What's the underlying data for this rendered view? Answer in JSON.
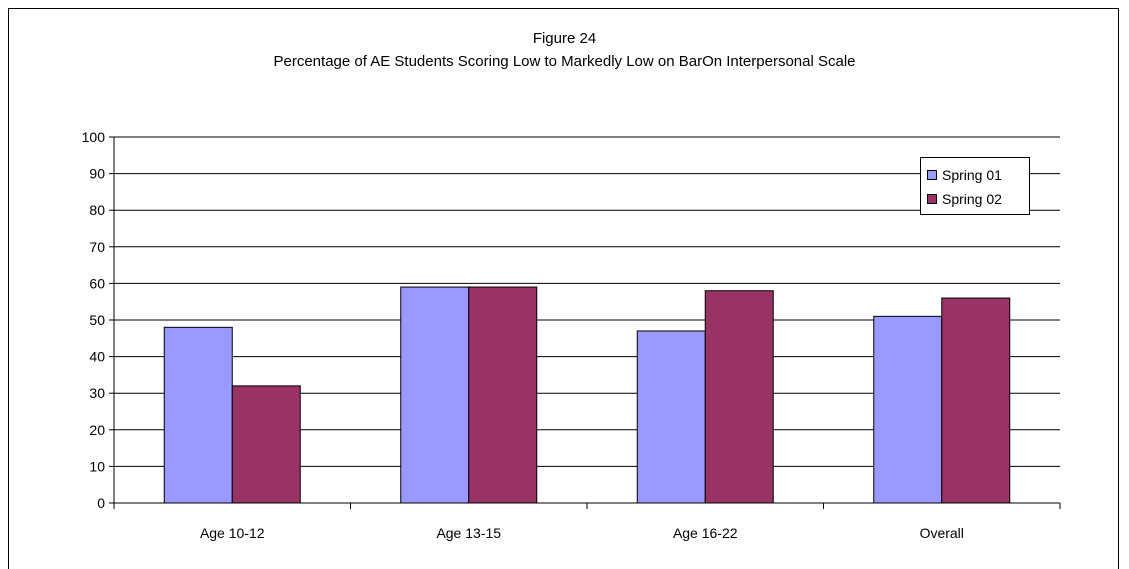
{
  "chart_data": {
    "type": "bar",
    "title": "Figure 24",
    "subtitle": "Percentage of AE Students Scoring Low to Markedly Low on BarOn Interpersonal Scale",
    "categories": [
      "Age 10-12",
      "Age 13-15",
      "Age 16-22",
      "Overall"
    ],
    "series": [
      {
        "name": "Spring 01",
        "color": "#9999ff",
        "values": [
          48,
          59,
          47,
          51
        ]
      },
      {
        "name": "Spring 02",
        "color": "#993366",
        "values": [
          32,
          59,
          58,
          56
        ]
      }
    ],
    "xlabel": "",
    "ylabel": "",
    "ylim": [
      0,
      100
    ],
    "yticks": [
      "0",
      "10",
      "20",
      "30",
      "40",
      "50",
      "60",
      "70",
      "80",
      "90",
      "100"
    ],
    "grid": true,
    "legend": "top-right"
  }
}
